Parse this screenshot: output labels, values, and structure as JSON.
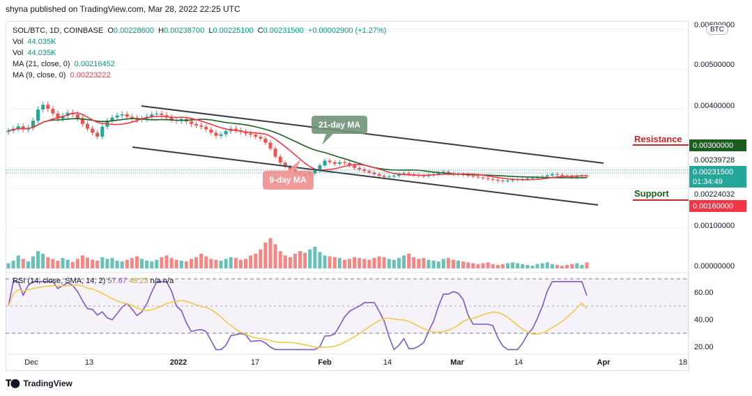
{
  "header": {
    "published": "shyna published on TradingView.com, Mar 28, 2022 22:25 UTC"
  },
  "legend": {
    "symbol": "SOL/BTC, 1D, COINBASE",
    "open_label": "O",
    "open": "0.00228600",
    "high_label": "H",
    "high": "0.00238700",
    "low_label": "L",
    "low": "0.00225100",
    "close_label": "C",
    "close": "0.00231500",
    "change": "+0.00002900 (+1.27%)",
    "vol1_label": "Vol",
    "vol1": "44.035K",
    "vol2_label": "Vol",
    "vol2": "44.035K",
    "ma21_label": "MA (21, close, 0)",
    "ma21": "0.00216452",
    "ma9_label": "MA (9, close, 0)",
    "ma9": "0.00223222"
  },
  "currency_badge": "BTC",
  "price_axis": {
    "ticks": [
      "0.00600000",
      "0.00500000",
      "0.00400000",
      "0.00100000",
      "0.00000000"
    ],
    "resistance_value": "0.00300000",
    "current_high_value": "0.00239728",
    "current_value": "0.00231500",
    "countdown": "01:34:49",
    "ma_value": "0.00224032",
    "support_value": "0.00160000"
  },
  "annotations": {
    "resistance": "Resistance",
    "support": "Support",
    "ma21_callout": "21-day MA",
    "ma9_callout": "9-day MA"
  },
  "rsi": {
    "legend_name": "RSI (14, close, SMA, 14, 2)",
    "value": "57.67",
    "sma_value": "48.23",
    "na1": "n/a",
    "na2": "n/a",
    "ticks": [
      "60.00",
      "40.00",
      "20.00"
    ]
  },
  "time_axis": {
    "labels": [
      "Dec",
      "13",
      "2022",
      "17",
      "Feb",
      "14",
      "Mar",
      "14",
      "Apr",
      "18"
    ]
  },
  "footer": {
    "brand": "TradingView"
  },
  "colors": {
    "up": "#26a69a",
    "down": "#ef5350",
    "ma9": "#f23645",
    "ma21": "#1b5e20",
    "rsi": "#7e57c2",
    "rsi_sma": "#f0c94d",
    "resistance": "#c62828",
    "support": "#1b5e20"
  },
  "chart_data": {
    "type": "candlestick",
    "symbol": "SOL/BTC",
    "interval": "1D",
    "exchange": "COINBASE",
    "ohlc_last": {
      "open": 0.002286,
      "high": 0.002387,
      "low": 0.002251,
      "close": 0.002315
    },
    "closes": [
      0.00345,
      0.0035,
      0.00356,
      0.00348,
      0.00352,
      0.0037,
      0.00398,
      0.0041,
      0.004,
      0.00388,
      0.00375,
      0.00382,
      0.0039,
      0.00386,
      0.00376,
      0.00362,
      0.0035,
      0.0034,
      0.0033,
      0.00355,
      0.0037,
      0.00378,
      0.00383,
      0.00386,
      0.0038,
      0.00376,
      0.00372,
      0.00375,
      0.0038,
      0.00386,
      0.00388,
      0.00384,
      0.00378,
      0.00372,
      0.0037,
      0.00374,
      0.00368,
      0.00362,
      0.00358,
      0.00355,
      0.00348,
      0.0034,
      0.00332,
      0.00336,
      0.00344,
      0.0035,
      0.00346,
      0.00342,
      0.00338,
      0.00335,
      0.0033,
      0.00325,
      0.00315,
      0.003,
      0.0028,
      0.00265,
      0.00255,
      0.00248,
      0.0024,
      0.00236,
      0.00232,
      0.00238,
      0.00245,
      0.00258,
      0.0027,
      0.00266,
      0.00262,
      0.00266,
      0.00264,
      0.00258,
      0.00252,
      0.00248,
      0.00244,
      0.0024,
      0.00236,
      0.00232,
      0.00229,
      0.0023,
      0.00232,
      0.00236,
      0.00238,
      0.00236,
      0.00234,
      0.00232,
      0.00231,
      0.00234,
      0.00236,
      0.0024,
      0.00242,
      0.00238,
      0.00236,
      0.00236,
      0.00235,
      0.00232,
      0.0023,
      0.00228,
      0.00226,
      0.00224,
      0.00222,
      0.0022,
      0.00219,
      0.0022,
      0.00222,
      0.00223,
      0.00224,
      0.00226,
      0.00227,
      0.00228,
      0.0023,
      0.00233,
      0.00236,
      0.00234,
      0.00232,
      0.00231,
      0.00229,
      0.00231,
      0.00232,
      0.002315
    ],
    "ma21_last": 0.00216452,
    "ma9_last": 0.00223222,
    "volume_last": "44.035K",
    "resistance_level": 0.003,
    "support_level": 0.0016,
    "rsi_last": 57.67,
    "rsi_sma_last": 48.23,
    "rsi_levels": [
      70,
      50,
      30
    ],
    "x_labels": [
      "Dec",
      "13",
      "2022",
      "17",
      "Feb",
      "14",
      "Mar",
      "14",
      "Apr",
      "18"
    ]
  }
}
